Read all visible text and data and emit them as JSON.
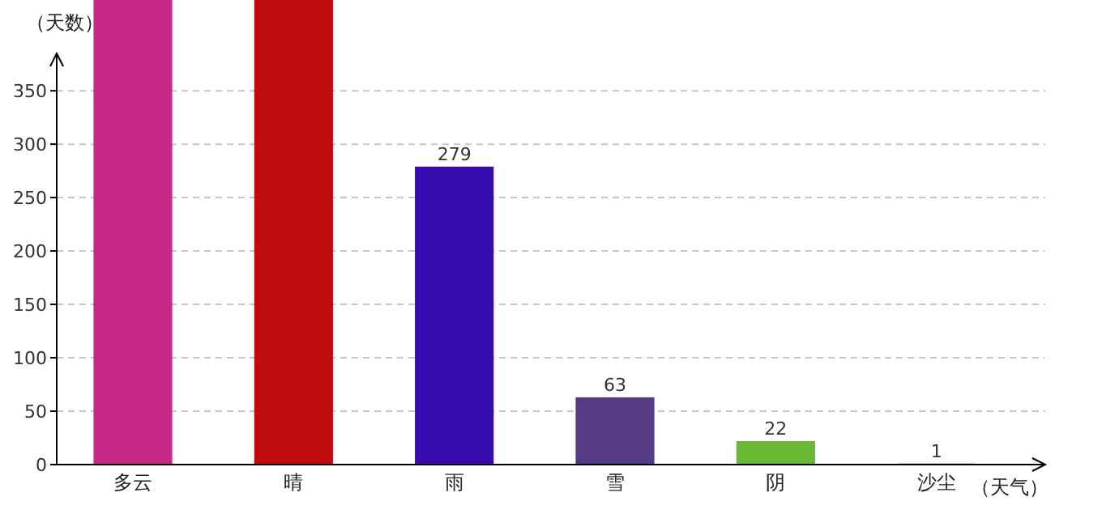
{
  "chart_data": {
    "type": "bar",
    "ylabel": "（天数）",
    "xlabel": "（天气）",
    "categories": [
      "多云",
      "晴",
      "雨",
      "雪",
      "阴",
      "沙尘"
    ],
    "values": [
      435,
      435,
      279,
      63,
      22,
      1
    ],
    "colors": [
      "#c62a86",
      "#bf0b0b",
      "#370bad",
      "#553a84",
      "#6ab936",
      "#4caf3a"
    ],
    "value_labels": [
      null,
      null,
      "279",
      "63",
      "22",
      "1"
    ],
    "ylim": [
      0,
      435
    ],
    "yticks": [
      0,
      50,
      100,
      150,
      200,
      250,
      300,
      350
    ],
    "grid": "y"
  }
}
